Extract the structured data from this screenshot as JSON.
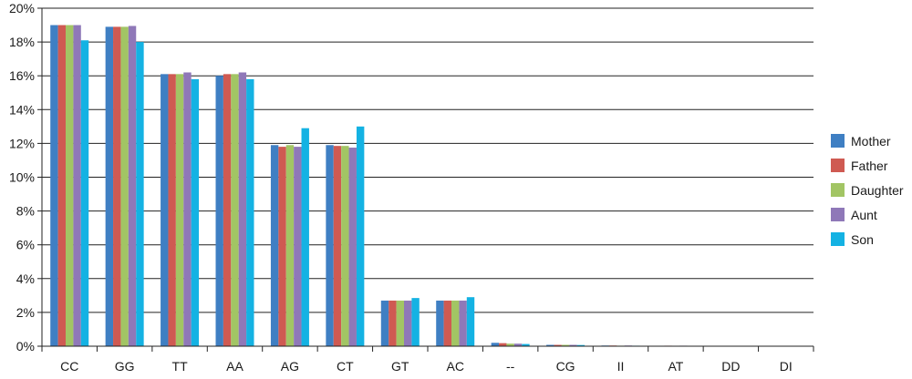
{
  "chart_data": {
    "type": "bar",
    "categories": [
      "CC",
      "GG",
      "TT",
      "AA",
      "AG",
      "CT",
      "GT",
      "AC",
      "--",
      "CG",
      "II",
      "AT",
      "DD",
      "DI"
    ],
    "series": [
      {
        "name": "Mother",
        "color": "#3f7fc3",
        "values": [
          19.0,
          18.9,
          16.1,
          16.0,
          11.9,
          11.9,
          2.7,
          2.7,
          0.2,
          0.08,
          0.04,
          0.02,
          0.01,
          0.01
        ]
      },
      {
        "name": "Father",
        "color": "#cf5a52",
        "values": [
          19.0,
          18.9,
          16.1,
          16.1,
          11.8,
          11.85,
          2.7,
          2.7,
          0.18,
          0.08,
          0.04,
          0.03,
          0.01,
          0.01
        ]
      },
      {
        "name": "Daughter",
        "color": "#a2c564",
        "values": [
          19.0,
          18.9,
          16.1,
          16.1,
          11.9,
          11.85,
          2.7,
          2.7,
          0.15,
          0.08,
          0.03,
          0.02,
          0.01,
          0.01
        ]
      },
      {
        "name": "Aunt",
        "color": "#8f78b8",
        "values": [
          19.0,
          18.95,
          16.2,
          16.2,
          11.8,
          11.75,
          2.7,
          2.7,
          0.15,
          0.08,
          0.04,
          0.03,
          0.01,
          0.01
        ]
      },
      {
        "name": "Son",
        "color": "#14b2e3",
        "values": [
          18.1,
          18.0,
          15.8,
          15.8,
          12.9,
          13.0,
          2.85,
          2.9,
          0.13,
          0.07,
          0.03,
          0.02,
          0.01,
          0.01
        ]
      }
    ],
    "y_ticks": [
      "0%",
      "2%",
      "4%",
      "6%",
      "8%",
      "10%",
      "12%",
      "14%",
      "16%",
      "18%",
      "20%"
    ],
    "ylim": [
      0,
      20
    ],
    "grid": true,
    "legend_position": "right"
  }
}
